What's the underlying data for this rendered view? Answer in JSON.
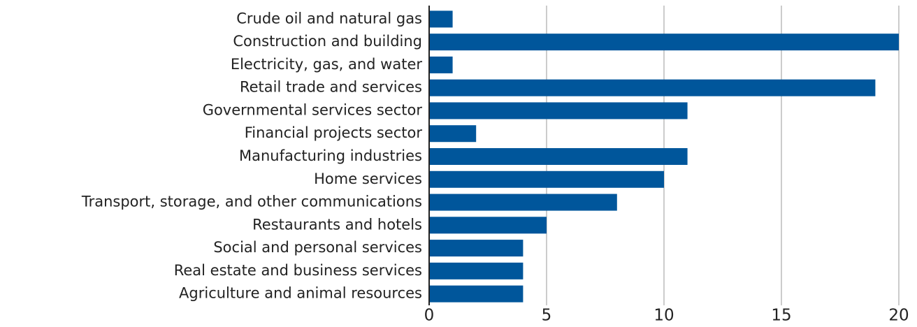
{
  "chart_data": {
    "type": "bar",
    "orientation": "horizontal",
    "categories": [
      "Crude oil and natural gas",
      "Construction and building",
      "Electricity, gas, and water",
      "Retail trade and services",
      "Governmental services sector",
      "Financial projects sector",
      "Manufacturing industries",
      "Home services",
      "Transport, storage, and other communications",
      "Restaurants and hotels",
      "Social and personal services",
      "Real estate and business services",
      "Agriculture and animal resources"
    ],
    "values": [
      1,
      20,
      1,
      19,
      11,
      2,
      11,
      10,
      8,
      5,
      4,
      4,
      4
    ],
    "color": "#00569b",
    "xlim": [
      0,
      20
    ],
    "xticks": [
      0,
      5,
      10,
      15,
      20
    ],
    "grid": true
  }
}
